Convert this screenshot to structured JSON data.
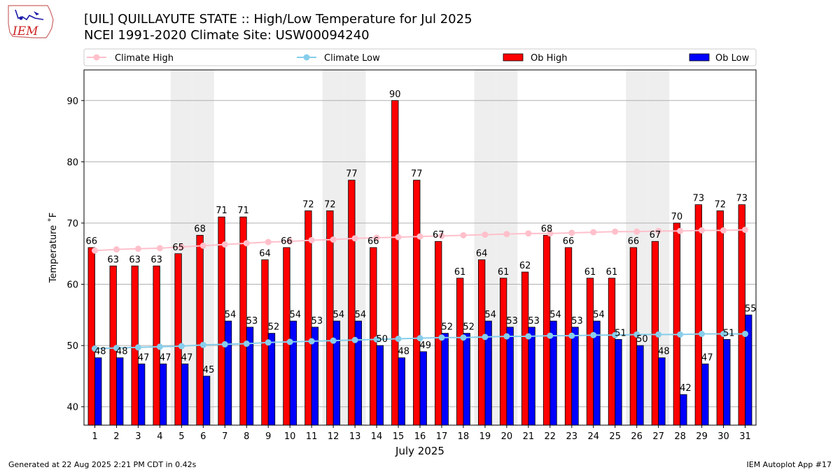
{
  "header": {
    "title_line1": "[UIL] QUILLAYUTE STATE :: High/Low Temperature for Jul 2025",
    "title_line2": "NCEI 1991-2020 Climate Site: USW00094240",
    "logo_text": "IEM"
  },
  "footer": {
    "generated": "Generated at 22 Aug 2025 2:21 PM CDT in 0.42s",
    "app": "IEM Autoplot App #17"
  },
  "colors": {
    "ob_high": "#ff0000",
    "ob_low": "#0000ff",
    "climate_high": "#ffc0cb",
    "climate_low": "#87ceeb",
    "weekend_band": "#eeeeee",
    "grid": "#b0b0b0"
  },
  "chart_data": {
    "type": "bar",
    "xlabel": "July 2025",
    "ylabel": "Temperature ˚F",
    "ylim": [
      37,
      95
    ],
    "yticks": [
      40,
      50,
      60,
      70,
      80,
      90
    ],
    "grid": "horizontal",
    "legend_placement": "top",
    "shaded_weekend_days": [
      5,
      6,
      12,
      13,
      19,
      20,
      26,
      27
    ],
    "categories": [
      "1",
      "2",
      "3",
      "4",
      "5",
      "6",
      "7",
      "8",
      "9",
      "10",
      "11",
      "12",
      "13",
      "14",
      "15",
      "16",
      "17",
      "18",
      "19",
      "20",
      "21",
      "22",
      "23",
      "24",
      "25",
      "26",
      "27",
      "28",
      "29",
      "30",
      "31"
    ],
    "series": [
      {
        "name": "Climate High",
        "kind": "line",
        "values": [
          65.5,
          65.7,
          65.8,
          65.9,
          66.1,
          66.3,
          66.5,
          66.7,
          66.9,
          67.0,
          67.2,
          67.3,
          67.5,
          67.6,
          67.7,
          67.8,
          67.9,
          68.0,
          68.1,
          68.2,
          68.3,
          68.3,
          68.4,
          68.5,
          68.6,
          68.6,
          68.7,
          68.7,
          68.8,
          68.8,
          68.9
        ]
      },
      {
        "name": "Climate Low",
        "kind": "line",
        "values": [
          49.5,
          49.6,
          49.7,
          49.8,
          49.9,
          50.1,
          50.2,
          50.3,
          50.5,
          50.6,
          50.7,
          50.8,
          50.9,
          51.0,
          51.1,
          51.2,
          51.3,
          51.3,
          51.4,
          51.5,
          51.5,
          51.6,
          51.6,
          51.7,
          51.7,
          51.8,
          51.8,
          51.8,
          51.9,
          51.9,
          51.9
        ]
      },
      {
        "name": "Ob High",
        "kind": "bar",
        "values": [
          66,
          63,
          63,
          63,
          65,
          68,
          71,
          71,
          64,
          66,
          72,
          72,
          77,
          66,
          90,
          77,
          67,
          61,
          64,
          61,
          62,
          68,
          66,
          61,
          61,
          66,
          67,
          70,
          73,
          72,
          73
        ]
      },
      {
        "name": "Ob Low",
        "kind": "bar",
        "values": [
          48,
          48,
          47,
          47,
          47,
          45,
          54,
          53,
          52,
          54,
          53,
          54,
          54,
          50,
          48,
          49,
          52,
          52,
          54,
          53,
          53,
          54,
          53,
          54,
          51,
          50,
          48,
          42,
          47,
          51,
          55
        ]
      }
    ]
  }
}
